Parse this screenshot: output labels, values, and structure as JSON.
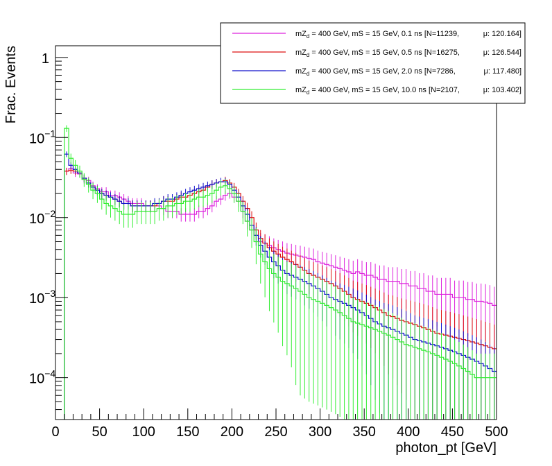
{
  "chart_data": {
    "type": "line",
    "title": "",
    "xlabel": "photon_pt [GeV]",
    "ylabel": "Frac. Events",
    "xlim": [
      0,
      500
    ],
    "ylim": [
      3e-05,
      1.4
    ],
    "yscale": "log",
    "grid": false,
    "legend_position": "top-right",
    "x_ticks": [
      0,
      50,
      100,
      150,
      200,
      250,
      300,
      350,
      400,
      450,
      500
    ],
    "x_tick_labels": [
      "0",
      "50",
      "100",
      "150",
      "200",
      "250",
      "300",
      "350",
      "400",
      "450",
      "500"
    ],
    "y_ticks": [
      0.0001,
      0.001,
      0.01,
      0.1,
      1
    ],
    "y_tick_labels": [
      {
        "base": "10",
        "exp": "−4"
      },
      {
        "base": "10",
        "exp": "−3"
      },
      {
        "base": "10",
        "exp": "−2"
      },
      {
        "base": "10",
        "exp": "−1"
      },
      {
        "base": "1",
        "exp": ""
      }
    ],
    "x": [
      10,
      15,
      20,
      25,
      30,
      35,
      40,
      45,
      50,
      55,
      60,
      65,
      70,
      75,
      80,
      85,
      90,
      95,
      100,
      105,
      110,
      115,
      120,
      125,
      130,
      135,
      140,
      145,
      150,
      155,
      160,
      165,
      170,
      175,
      180,
      185,
      190,
      195,
      200,
      205,
      210,
      215,
      220,
      225,
      230,
      235,
      240,
      245,
      250,
      255,
      260,
      265,
      270,
      275,
      280,
      285,
      290,
      295,
      300,
      305,
      310,
      315,
      320,
      325,
      330,
      335,
      340,
      345,
      350,
      355,
      360,
      365,
      370,
      375,
      380,
      385,
      390,
      395,
      400,
      405,
      410,
      415,
      420,
      425,
      430,
      435,
      440,
      445,
      450,
      455,
      460,
      465,
      470,
      475,
      480,
      485,
      490,
      495
    ],
    "series": [
      {
        "name": "mZ_d = 400 GeV, mS = 15 GeV, 0.1 ns [N=11239, μ: 120.164]",
        "legend_parts": {
          "pre": "mZ",
          "sub": "d",
          "mid": " = 400 GeV, mS = 15 GeV, 0.1 ns [N=11239,",
          "mu": "μ: 120.164]"
        },
        "color": "#dd22dd",
        "values": [
          0.038,
          0.041,
          0.036,
          0.035,
          0.03,
          0.029,
          0.025,
          0.023,
          0.021,
          0.021,
          0.019,
          0.019,
          0.018,
          0.017,
          0.016,
          0.015,
          0.015,
          0.015,
          0.014,
          0.014,
          0.014,
          0.014,
          0.013,
          0.012,
          0.012,
          0.012,
          0.011,
          0.011,
          0.011,
          0.011,
          0.012,
          0.012,
          0.013,
          0.014,
          0.016,
          0.017,
          0.019,
          0.02,
          0.018,
          0.016,
          0.012,
          0.009,
          0.007,
          0.006,
          0.005,
          0.0048,
          0.0045,
          0.0042,
          0.004,
          0.0038,
          0.0036,
          0.0035,
          0.0034,
          0.0033,
          0.0032,
          0.0031,
          0.003,
          0.0028,
          0.0027,
          0.0026,
          0.0025,
          0.0024,
          0.0023,
          0.0022,
          0.0021,
          0.002,
          0.0021,
          0.002,
          0.0019,
          0.0019,
          0.0018,
          0.0017,
          0.0017,
          0.0016,
          0.0016,
          0.0016,
          0.0015,
          0.0015,
          0.0014,
          0.0014,
          0.0013,
          0.0013,
          0.0012,
          0.0012,
          0.0011,
          0.0011,
          0.0011,
          0.0011,
          0.001,
          0.001,
          0.001,
          0.00095,
          0.00095,
          0.0009,
          0.0009,
          0.00088,
          0.00085,
          0.0008
        ]
      },
      {
        "name": "mZ_d = 400 GeV, mS = 15 GeV, 0.5 ns [N=16275, μ: 126.544]",
        "legend_parts": {
          "pre": "mZ",
          "sub": "d",
          "mid": " = 400 GeV, mS = 15 GeV, 0.5 ns [N=16275,",
          "mu": "μ: 126.544]"
        },
        "color": "#dd1111",
        "values": [
          0.038,
          0.039,
          0.038,
          0.036,
          0.031,
          0.027,
          0.024,
          0.022,
          0.02,
          0.019,
          0.018,
          0.017,
          0.016,
          0.015,
          0.015,
          0.014,
          0.014,
          0.014,
          0.014,
          0.014,
          0.014,
          0.015,
          0.016,
          0.016,
          0.016,
          0.017,
          0.018,
          0.018,
          0.019,
          0.02,
          0.021,
          0.022,
          0.024,
          0.026,
          0.027,
          0.028,
          0.029,
          0.027,
          0.024,
          0.02,
          0.016,
          0.013,
          0.01,
          0.007,
          0.0055,
          0.0048,
          0.0042,
          0.0038,
          0.0035,
          0.0032,
          0.003,
          0.0028,
          0.0026,
          0.0024,
          0.0022,
          0.002,
          0.0019,
          0.0018,
          0.0017,
          0.0016,
          0.0015,
          0.0014,
          0.0013,
          0.0012,
          0.0011,
          0.001,
          0.00095,
          0.0009,
          0.00085,
          0.0008,
          0.00075,
          0.0007,
          0.00065,
          0.0006,
          0.00058,
          0.00055,
          0.00052,
          0.0005,
          0.00048,
          0.00046,
          0.00044,
          0.00042,
          0.0004,
          0.00038,
          0.00036,
          0.00035,
          0.00034,
          0.00033,
          0.00032,
          0.00031,
          0.0003,
          0.00029,
          0.00028,
          0.00027,
          0.00026,
          0.00025,
          0.00024,
          0.00023
        ]
      },
      {
        "name": "mZ_d = 400 GeV, mS = 15 GeV, 2.0 ns [N=7286, μ: 117.480]",
        "legend_parts": {
          "pre": "mZ",
          "sub": "d",
          "mid": " = 400 GeV, mS = 15 GeV, 2.0 ns [N=7286,",
          "mu": "μ: 117.480]"
        },
        "color": "#1111cc",
        "values": [
          0.062,
          0.045,
          0.04,
          0.036,
          0.031,
          0.027,
          0.024,
          0.022,
          0.02,
          0.019,
          0.018,
          0.017,
          0.016,
          0.015,
          0.015,
          0.014,
          0.014,
          0.014,
          0.014,
          0.014,
          0.015,
          0.015,
          0.016,
          0.017,
          0.017,
          0.018,
          0.019,
          0.02,
          0.021,
          0.022,
          0.023,
          0.024,
          0.025,
          0.026,
          0.027,
          0.028,
          0.028,
          0.026,
          0.022,
          0.018,
          0.014,
          0.011,
          0.008,
          0.006,
          0.0045,
          0.0038,
          0.0032,
          0.0028,
          0.0025,
          0.0022,
          0.002,
          0.0019,
          0.0018,
          0.0017,
          0.0016,
          0.0015,
          0.0014,
          0.0013,
          0.0012,
          0.0011,
          0.001,
          0.00095,
          0.0009,
          0.00085,
          0.0008,
          0.00075,
          0.0007,
          0.00065,
          0.0006,
          0.00055,
          0.0005,
          0.00047,
          0.00044,
          0.00042,
          0.0004,
          0.00038,
          0.00036,
          0.00034,
          0.00032,
          0.0003,
          0.00029,
          0.00028,
          0.00027,
          0.00026,
          0.00025,
          0.00024,
          0.00023,
          0.00022,
          0.00021,
          0.0002,
          0.00019,
          0.00018,
          0.00017,
          0.00016,
          0.00015,
          0.00014,
          0.00013,
          0.00012
        ]
      },
      {
        "name": "mZ_d = 400 GeV, mS = 15 GeV, 10.0 ns [N=2107, μ: 103.402]",
        "legend_parts": {
          "pre": "mZ",
          "sub": "d",
          "mid": " = 400 GeV, mS = 15 GeV, 10.0 ns [N=2107,",
          "mu": "μ: 103.402]"
        },
        "color": "#33ee33",
        "values": [
          0.13,
          0.055,
          0.045,
          0.038,
          0.03,
          0.026,
          0.022,
          0.02,
          0.017,
          0.015,
          0.014,
          0.013,
          0.012,
          0.011,
          0.011,
          0.011,
          0.012,
          0.012,
          0.012,
          0.012,
          0.012,
          0.013,
          0.013,
          0.014,
          0.014,
          0.015,
          0.015,
          0.016,
          0.016,
          0.017,
          0.018,
          0.018,
          0.019,
          0.02,
          0.022,
          0.024,
          0.025,
          0.023,
          0.02,
          0.016,
          0.012,
          0.009,
          0.007,
          0.005,
          0.0035,
          0.0028,
          0.0023,
          0.002,
          0.0018,
          0.0016,
          0.0015,
          0.0014,
          0.0013,
          0.0012,
          0.0011,
          0.001,
          0.00095,
          0.0009,
          0.00085,
          0.0008,
          0.00075,
          0.0007,
          0.00065,
          0.0006,
          0.00055,
          0.0005,
          0.00048,
          0.00046,
          0.00044,
          0.00042,
          0.0004,
          0.00038,
          0.00036,
          0.00034,
          0.00032,
          0.0003,
          0.00028,
          0.00026,
          0.00025,
          0.00024,
          0.00023,
          0.00022,
          0.00021,
          0.0002,
          0.00019,
          0.00018,
          0.00017,
          0.00016,
          0.00015,
          0.00014,
          0.00013,
          0.00012,
          0.00011,
          0.0001,
          0.0001,
          0.0001,
          0.0001,
          0.0001
        ]
      }
    ]
  }
}
